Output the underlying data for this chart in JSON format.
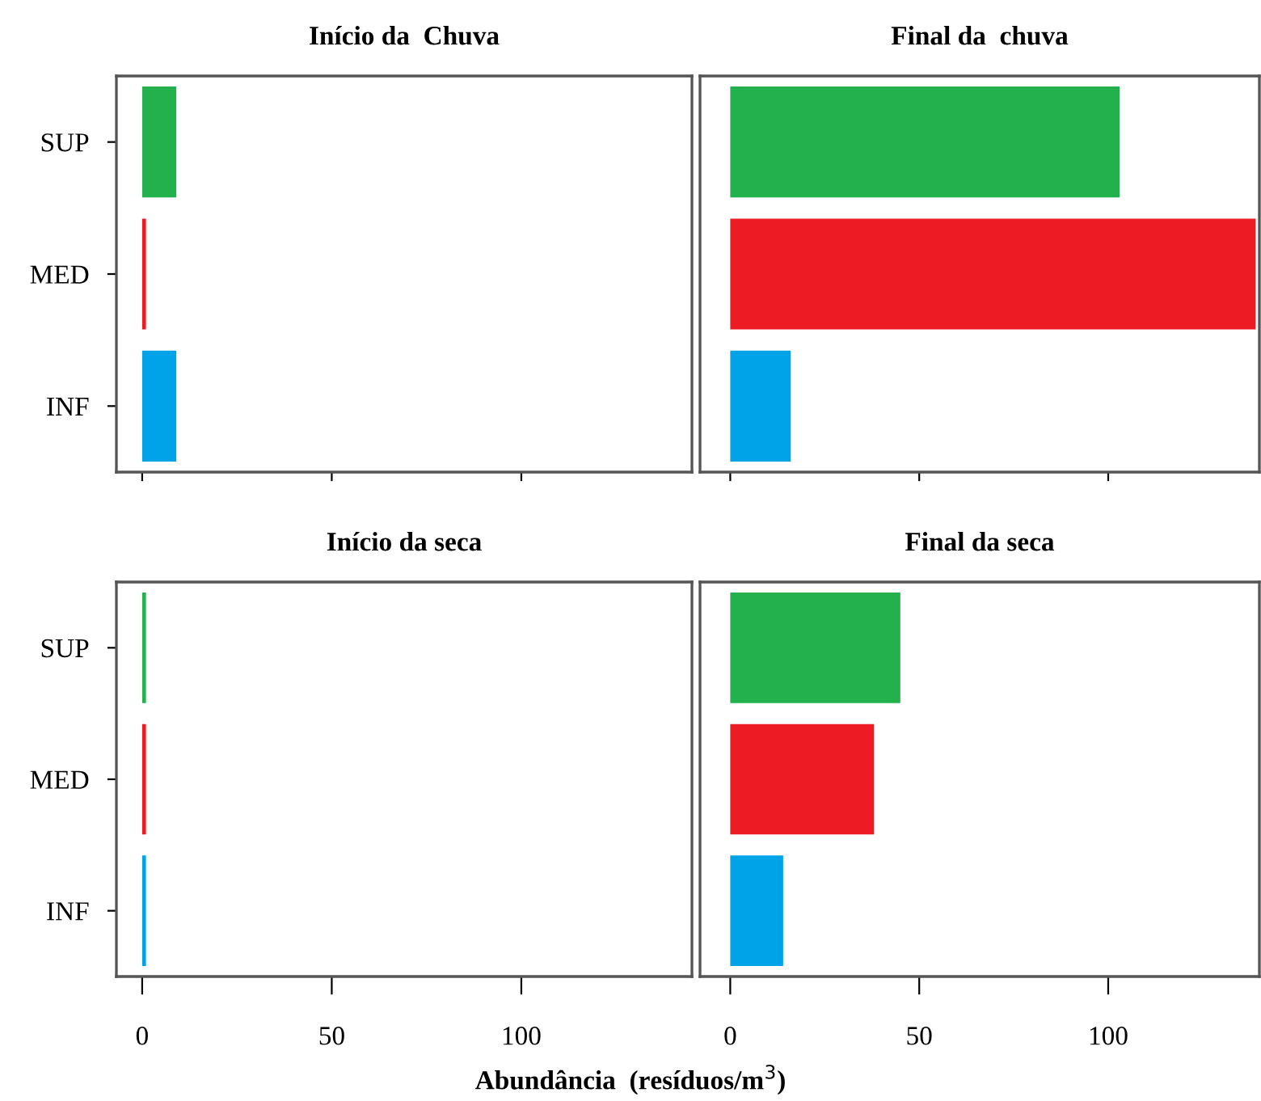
{
  "chart_data": [
    {
      "type": "bar",
      "orientation": "horizontal",
      "title": "Início da  Chuva",
      "categories": [
        "SUP",
        "MED",
        "INF"
      ],
      "values": [
        9,
        1,
        9
      ],
      "colors": [
        "#22b14c",
        "#ed1c24",
        "#00a2e8"
      ],
      "xlim": [
        -6.8,
        145
      ],
      "xticks": [
        {
          "value": 0,
          "label": null
        },
        {
          "value": 50,
          "label": null
        },
        {
          "value": 100,
          "label": null
        }
      ],
      "tick_labels": "y",
      "grid": false,
      "legend": false
    },
    {
      "type": "bar",
      "orientation": "horizontal",
      "title": "Final da  chuva",
      "categories": [
        null,
        null,
        null
      ],
      "values": [
        103,
        139,
        16
      ],
      "colors": [
        "#22b14c",
        "#ed1c24",
        "#00a2e8"
      ],
      "xlim": [
        -8,
        140
      ],
      "xticks": [
        {
          "value": 0,
          "label": null
        },
        {
          "value": 50,
          "label": null
        },
        {
          "value": 100,
          "label": null
        }
      ],
      "tick_labels": false,
      "grid": false,
      "legend": false
    },
    {
      "type": "bar",
      "orientation": "horizontal",
      "title": "Início da seca",
      "categories": [
        "SUP",
        "MED",
        "INF"
      ],
      "values": [
        1,
        1,
        1
      ],
      "colors": [
        "#22b14c",
        "#ed1c24",
        "#00a2e8"
      ],
      "xlim": [
        -6.8,
        145
      ],
      "xticks": [
        0,
        50,
        100
      ],
      "xlabel": "Abundância  (resíduos/m$^{3}$)",
      "grid": false,
      "legend": false
    },
    {
      "type": "bar",
      "orientation": "horizontal",
      "title": "Final da seca",
      "categories": [
        null,
        null,
        null
      ],
      "values": [
        45,
        38,
        14
      ],
      "colors": [
        "#22b14c",
        "#ed1c24",
        "#00a2e8"
      ],
      "xlim": [
        -8,
        140
      ],
      "xticks": [
        0,
        50,
        100
      ],
      "tick_labels": "x",
      "grid": false,
      "legend": false
    }
  ]
}
